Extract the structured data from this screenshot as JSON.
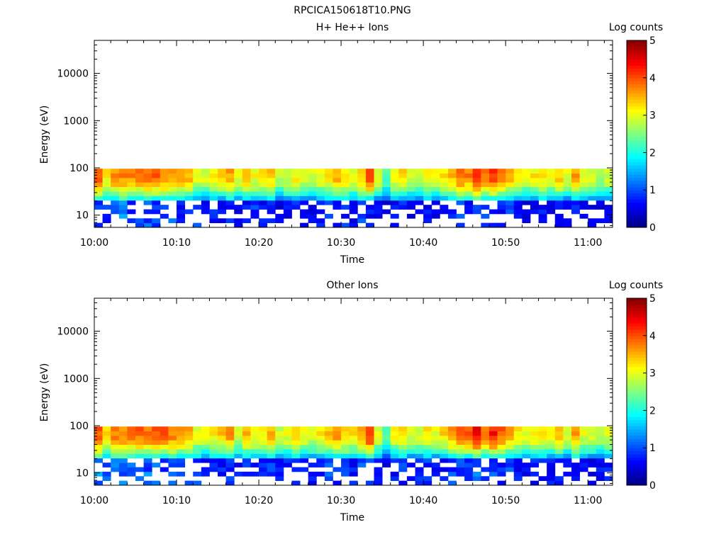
{
  "figure_title": "RPCICA150618T10.PNG",
  "colorbar": {
    "label": "Log counts",
    "ticks": [
      "0",
      "1",
      "2",
      "3",
      "4",
      "5"
    ],
    "range": [
      0,
      5
    ]
  },
  "chart_data": [
    {
      "type": "heatmap",
      "title": "H+ He++ Ions",
      "xlabel": "Time",
      "ylabel": "Energy (eV)",
      "x_ticks": [
        "10:00",
        "10:10",
        "10:20",
        "10:30",
        "10:40",
        "10:50",
        "11:00"
      ],
      "y_ticks": [
        "10",
        "100",
        "1000",
        "10000"
      ],
      "x_range_minutes": [
        0,
        63
      ],
      "y_range_ev": [
        5.5,
        50000
      ],
      "y_scale": "log",
      "energy_bins_max_ev": 96,
      "energy_bins_min_ev": 5.5,
      "time_bins": 63,
      "energy_rows": 13,
      "counts_profile_upper": [
        4.0,
        3.2,
        3.7,
        3.7,
        3.7,
        3.8,
        3.8,
        3.9,
        3.8,
        3.7,
        3.7,
        3.5,
        3.0,
        3.0,
        3.1,
        3.3,
        3.6,
        3.0,
        3.4,
        3.1,
        3.2,
        3.4,
        2.8,
        3.0,
        3.2,
        3.0,
        2.9,
        3.1,
        3.3,
        3.6,
        3.3,
        3.1,
        3.5,
        4.1,
        3.0,
        2.4,
        3.1,
        3.3,
        3.0,
        2.9,
        3.2,
        3.0,
        3.3,
        3.5,
        3.8,
        3.8,
        4.3,
        3.9,
        4.2,
        3.8,
        3.5,
        3.2,
        3.0,
        3.2,
        3.3,
        3.1,
        3.4,
        3.0,
        3.6,
        3.0,
        3.0,
        2.8,
        2.9
      ],
      "counts_profile_lower": [
        1.2,
        1.0,
        1.1,
        1.3,
        1.0,
        0.9,
        1.2,
        1.1,
        1.0,
        1.1,
        0.8,
        0.9,
        1.0,
        0.6,
        0.8,
        0.7,
        0.9,
        0.6,
        0.8,
        1.0,
        0.7,
        0.8,
        0.6,
        0.7,
        0.9,
        0.6,
        0.7,
        0.8,
        0.9,
        0.8,
        0.9,
        0.7,
        1.0,
        0.8,
        0.6,
        0.5,
        0.7,
        0.8,
        0.6,
        0.7,
        0.8,
        0.6,
        0.7,
        0.9,
        1.0,
        0.8,
        1.1,
        0.9,
        1.0,
        0.8,
        0.9,
        0.7,
        0.6,
        0.7,
        0.8,
        0.6,
        0.7,
        0.6,
        0.8,
        0.6,
        0.5,
        0.6,
        0.7
      ]
    },
    {
      "type": "heatmap",
      "title": "Other Ions",
      "xlabel": "Time",
      "ylabel": "Energy (eV)",
      "x_ticks": [
        "10:00",
        "10:10",
        "10:20",
        "10:30",
        "10:40",
        "10:50",
        "11:00"
      ],
      "y_ticks": [
        "10",
        "100",
        "1000",
        "10000"
      ],
      "x_range_minutes": [
        0,
        63
      ],
      "y_range_ev": [
        5.5,
        50000
      ],
      "y_scale": "log",
      "energy_bins_max_ev": 96,
      "energy_bins_min_ev": 5.5,
      "time_bins": 63,
      "energy_rows": 13,
      "counts_profile_upper": [
        4.0,
        3.3,
        3.8,
        3.8,
        3.8,
        3.9,
        3.9,
        4.0,
        3.9,
        3.8,
        3.8,
        3.6,
        3.0,
        3.1,
        3.2,
        3.4,
        3.7,
        3.0,
        3.5,
        3.2,
        3.2,
        3.5,
        2.9,
        3.1,
        3.3,
        3.1,
        3.0,
        3.2,
        3.4,
        3.7,
        3.4,
        3.2,
        3.6,
        4.2,
        3.0,
        2.3,
        3.1,
        3.3,
        3.0,
        2.9,
        3.2,
        3.0,
        3.3,
        3.6,
        3.9,
        3.9,
        4.4,
        3.9,
        4.3,
        3.9,
        3.5,
        3.2,
        3.0,
        3.2,
        3.3,
        3.1,
        3.4,
        3.0,
        3.7,
        3.0,
        3.0,
        2.8,
        2.9
      ],
      "counts_profile_lower": [
        1.3,
        1.1,
        1.2,
        1.3,
        1.1,
        1.0,
        1.2,
        1.1,
        1.1,
        1.2,
        0.9,
        1.0,
        1.1,
        0.7,
        0.9,
        0.8,
        1.0,
        0.7,
        0.9,
        1.0,
        0.8,
        0.9,
        0.7,
        0.8,
        1.0,
        0.7,
        0.8,
        0.9,
        1.0,
        0.9,
        1.0,
        0.8,
        1.1,
        1.0,
        0.8,
        0.6,
        0.8,
        0.9,
        0.7,
        0.8,
        0.9,
        0.7,
        0.8,
        1.0,
        1.1,
        0.9,
        1.2,
        1.0,
        1.1,
        0.9,
        1.0,
        0.8,
        0.7,
        0.8,
        0.9,
        0.7,
        0.8,
        0.7,
        0.9,
        0.7,
        0.6,
        0.7,
        0.8
      ]
    }
  ]
}
